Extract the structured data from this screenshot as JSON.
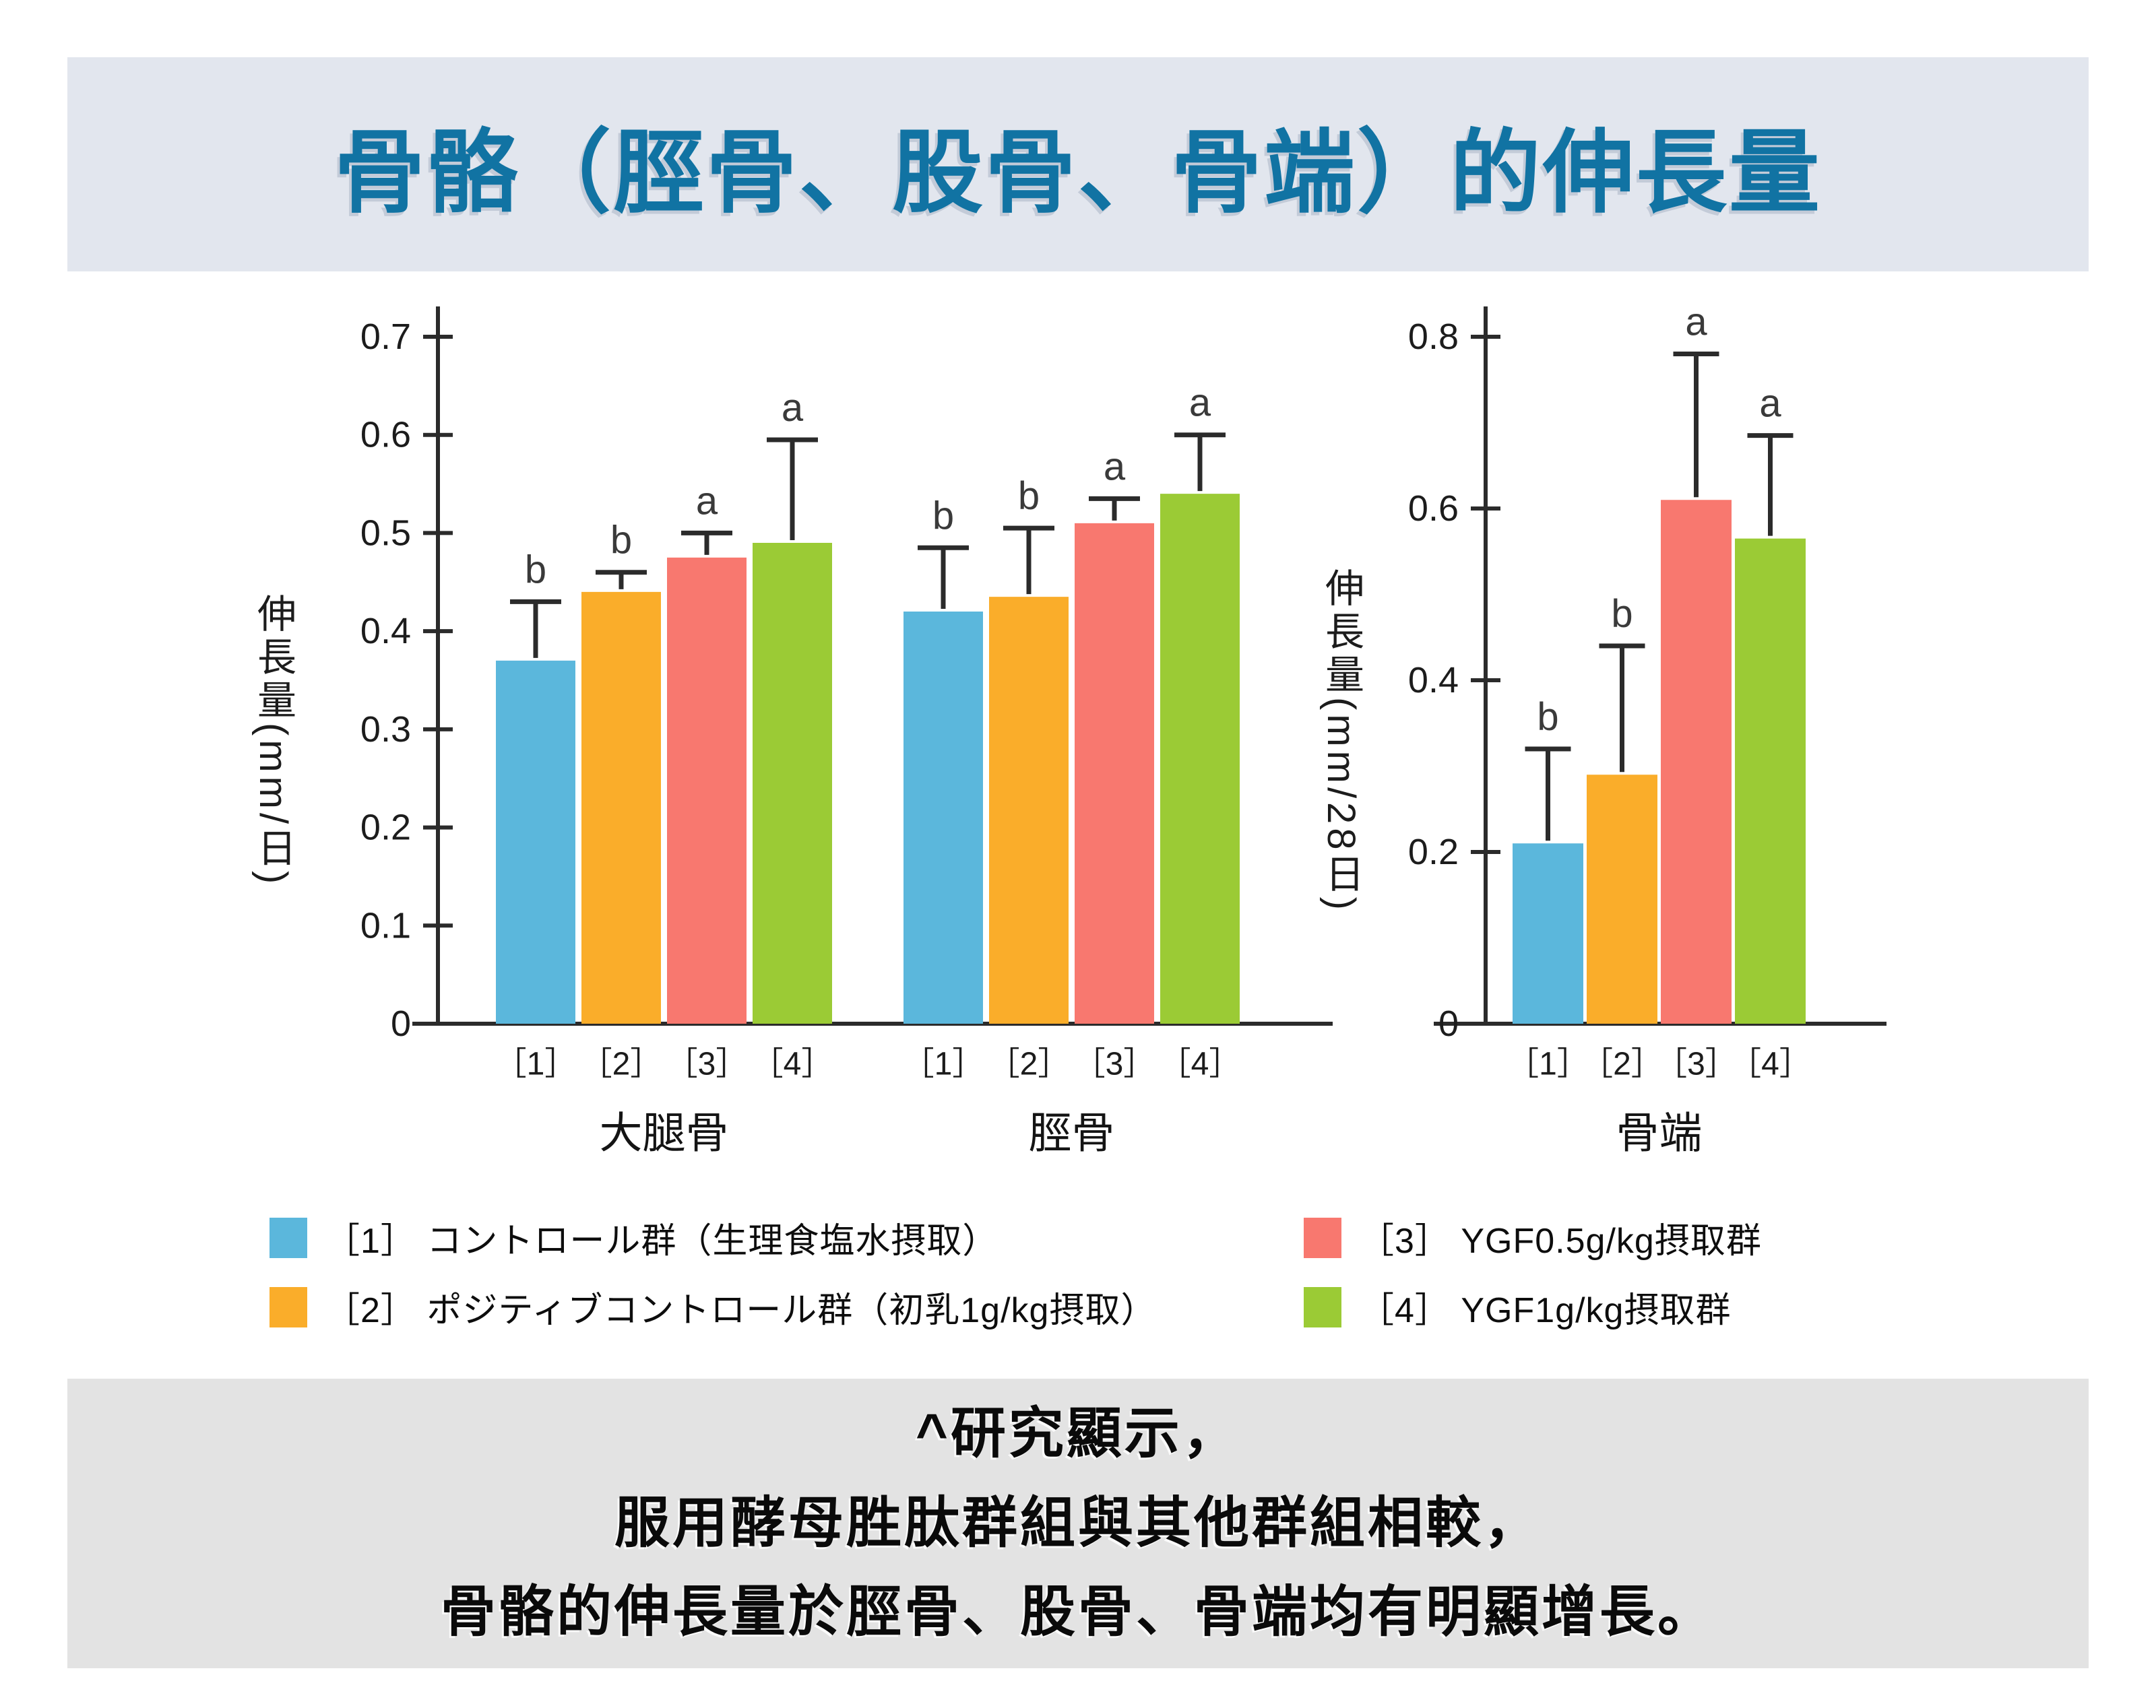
{
  "page": {
    "title": "骨骼（脛骨、股骨、骨端）的伸長量"
  },
  "theme": {
    "title_color": "#1173A3",
    "title_band_bg": "#E2E6EE",
    "caption_band_bg": "#E3E3E3",
    "axis_color": "#2B2B2B",
    "sig_letter_color": "#3A3A3A",
    "series_colors": [
      "#5BB7DC",
      "#FAAD2A",
      "#F8786F",
      "#9BCB35"
    ]
  },
  "chart_data": [
    {
      "type": "bar",
      "ylabel": "伸長量(mm/日)",
      "ylim": [
        0,
        0.7
      ],
      "ytick_step": 0.1,
      "grid": false,
      "legend_position": "bottom",
      "groups": [
        {
          "label": "大腿骨",
          "categories": [
            "［1］",
            "［2］",
            "［3］",
            "［4］"
          ],
          "values": [
            0.37,
            0.44,
            0.475,
            0.49
          ],
          "error_up": [
            0.06,
            0.02,
            0.025,
            0.105
          ],
          "sig_letters": [
            "b",
            "b",
            "a",
            "a"
          ]
        },
        {
          "label": "脛骨",
          "categories": [
            "［1］",
            "［2］",
            "［3］",
            "［4］"
          ],
          "values": [
            0.42,
            0.435,
            0.51,
            0.54
          ],
          "error_up": [
            0.065,
            0.07,
            0.025,
            0.06
          ],
          "sig_letters": [
            "b",
            "b",
            "a",
            "a"
          ]
        }
      ]
    },
    {
      "type": "bar",
      "ylabel": "伸長量(mm/28日)",
      "ylim": [
        0,
        0.8
      ],
      "ytick_step": 0.2,
      "grid": false,
      "legend_position": "bottom",
      "groups": [
        {
          "label": "骨端",
          "categories": [
            "［1］",
            "［2］",
            "［3］",
            "［4］"
          ],
          "values": [
            0.21,
            0.29,
            0.61,
            0.565
          ],
          "error_up": [
            0.11,
            0.15,
            0.17,
            0.12
          ],
          "sig_letters": [
            "b",
            "b",
            "a",
            "a"
          ]
        }
      ]
    }
  ],
  "legend": {
    "items": [
      {
        "swatch": "#5BB7DC",
        "label": "［1］ コントロール群（生理食塩水摂取）"
      },
      {
        "swatch": "#FAAD2A",
        "label": "［2］ ポジティブコントロール群（初乳1g/kg摂取）"
      },
      {
        "swatch": "#F8786F",
        "label": "［3］ YGF0.5g/kg摂取群"
      },
      {
        "swatch": "#9BCB35",
        "label": "［4］ YGF1g/kg摂取群"
      }
    ]
  },
  "caption": {
    "lines": [
      "^研究顯示，",
      "服用酵母胜肽群組與其他群組相較，",
      "骨骼的伸長量於脛骨、股骨、骨端均有明顯增長。"
    ]
  }
}
